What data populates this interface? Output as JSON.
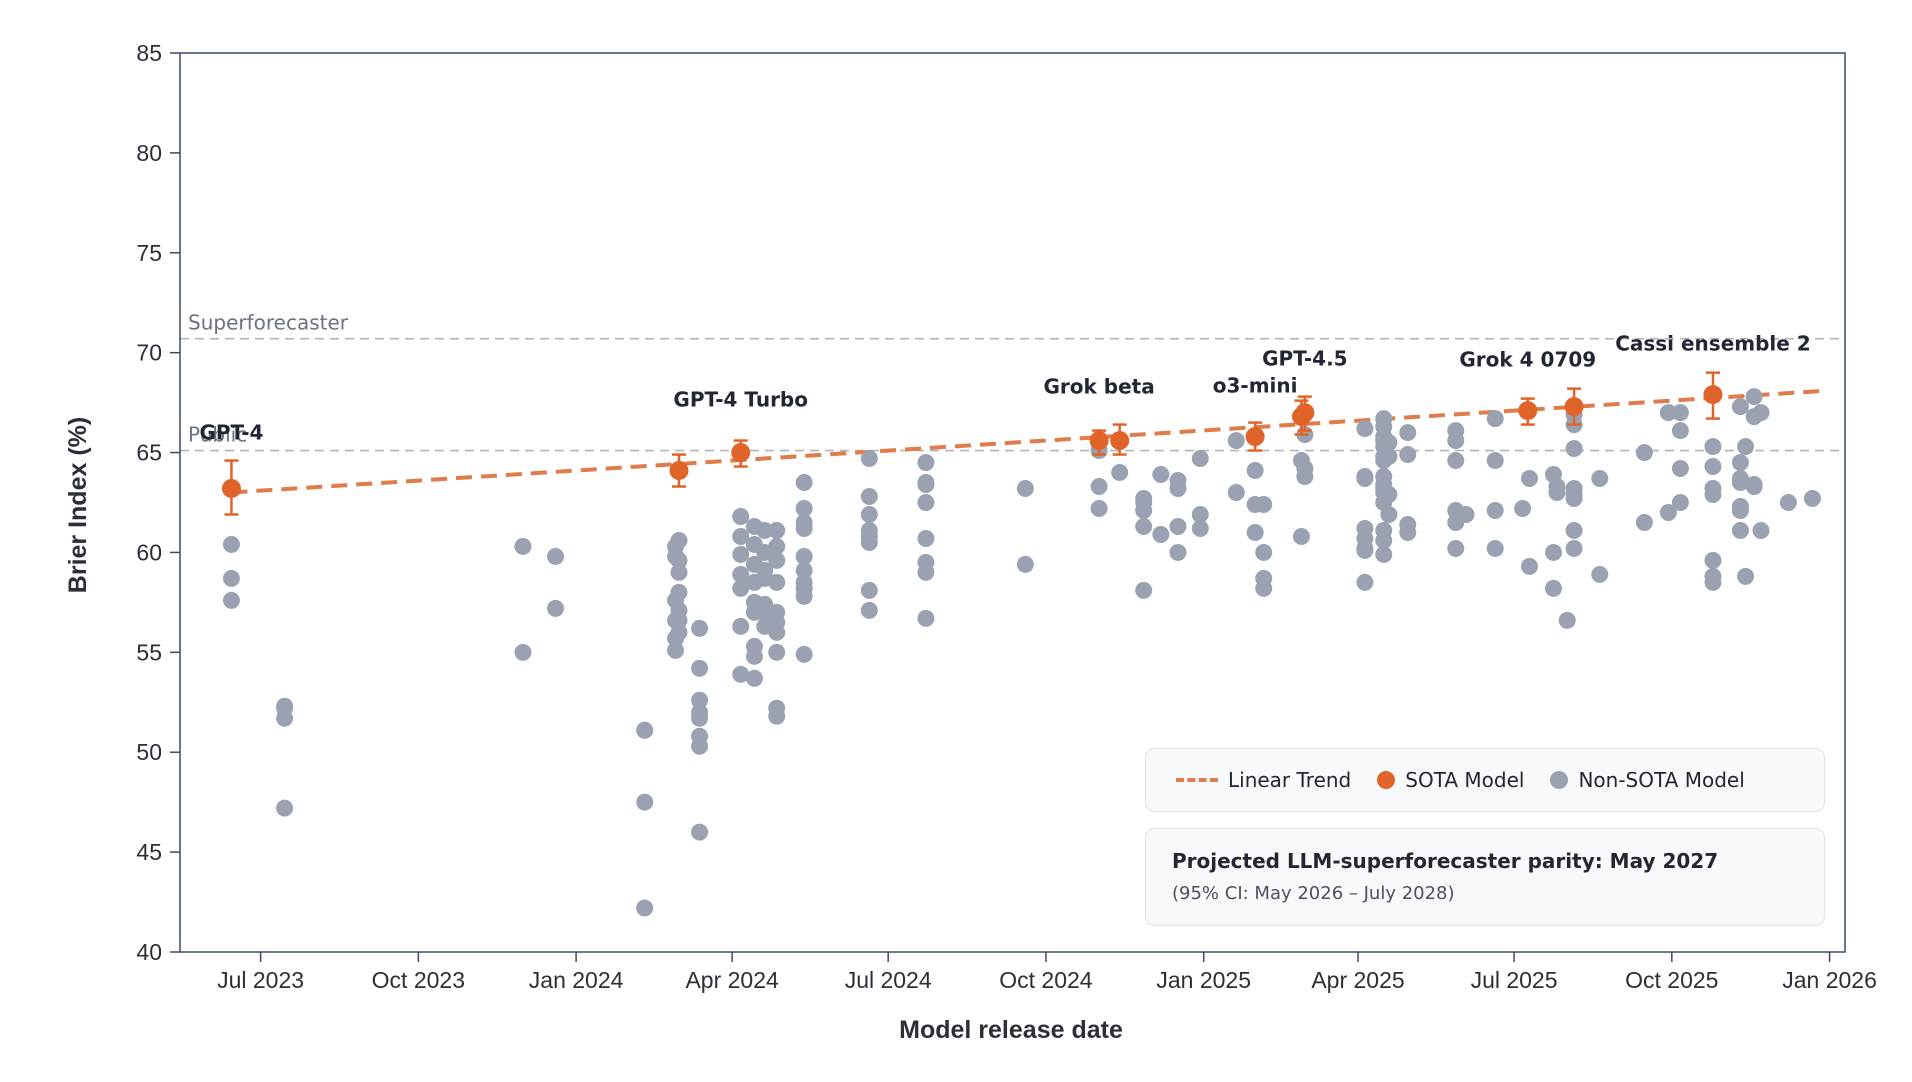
{
  "chart_data": {
    "type": "scatter",
    "title": "",
    "xlabel": "Model release date",
    "ylabel": "Brier Index (%)",
    "ylim": [
      40,
      85
    ],
    "yticks": [
      40,
      45,
      50,
      55,
      60,
      65,
      70,
      75,
      80,
      85
    ],
    "xlim": [
      "2023-05-15",
      "2026-01-10"
    ],
    "xticks": [
      {
        "date": "2023-07-01",
        "label": "Jul 2023"
      },
      {
        "date": "2023-10-01",
        "label": "Oct 2023"
      },
      {
        "date": "2024-01-01",
        "label": "Jan 2024"
      },
      {
        "date": "2024-04-01",
        "label": "Apr 2024"
      },
      {
        "date": "2024-07-01",
        "label": "Jul 2024"
      },
      {
        "date": "2024-10-01",
        "label": "Oct 2024"
      },
      {
        "date": "2025-01-01",
        "label": "Jan 2025"
      },
      {
        "date": "2025-04-01",
        "label": "Apr 2025"
      },
      {
        "date": "2025-07-01",
        "label": "Jul 2025"
      },
      {
        "date": "2025-10-01",
        "label": "Oct 2025"
      },
      {
        "date": "2026-01-01",
        "label": "Jan 2026"
      }
    ],
    "reference_lines": [
      {
        "label": "Superforecaster",
        "value": 70.7
      },
      {
        "label": "Public",
        "value": 65.1
      }
    ],
    "trend": {
      "name": "Linear Trend",
      "start": [
        "2023-06-14",
        63.0
      ],
      "end": [
        "2025-12-31",
        68.1
      ]
    },
    "sota_series": {
      "name": "SOTA Model",
      "points": [
        {
          "date": "2023-06-14",
          "value": 63.2,
          "low": 61.9,
          "high": 64.6,
          "label": "GPT-4"
        },
        {
          "date": "2024-03-01",
          "value": 64.1,
          "low": 63.3,
          "high": 64.9,
          "label": ""
        },
        {
          "date": "2024-04-06",
          "value": 65.0,
          "low": 64.3,
          "high": 65.6,
          "label": "GPT-4 Turbo"
        },
        {
          "date": "2024-11-01",
          "value": 65.6,
          "low": 64.9,
          "high": 66.1,
          "label": "Grok beta"
        },
        {
          "date": "2024-11-13",
          "value": 65.6,
          "low": 64.9,
          "high": 66.4,
          "label": ""
        },
        {
          "date": "2025-01-31",
          "value": 65.8,
          "low": 65.1,
          "high": 66.5,
          "label": "o3-mini"
        },
        {
          "date": "2025-02-27",
          "value": 66.8,
          "low": 65.9,
          "high": 67.6,
          "label": ""
        },
        {
          "date": "2025-03-01",
          "value": 67.0,
          "low": 66.1,
          "high": 67.8,
          "label": "GPT-4.5"
        },
        {
          "date": "2025-07-09",
          "value": 67.1,
          "low": 66.4,
          "high": 67.7,
          "label": "Grok 4 0709"
        },
        {
          "date": "2025-08-05",
          "value": 67.3,
          "low": 66.4,
          "high": 68.2,
          "label": ""
        },
        {
          "date": "2025-10-25",
          "value": 67.9,
          "low": 66.7,
          "high": 69.0,
          "label": "Cassi ensemble 2"
        }
      ]
    },
    "non_sota_series": {
      "name": "Non-SOTA Model",
      "points": [
        [
          "2023-06-14",
          60.4
        ],
        [
          "2023-06-14",
          58.7
        ],
        [
          "2023-06-14",
          57.6
        ],
        [
          "2023-07-15",
          52.3
        ],
        [
          "2023-07-15",
          52.2
        ],
        [
          "2023-07-15",
          51.7
        ],
        [
          "2023-07-15",
          47.2
        ],
        [
          "2023-12-01",
          60.3
        ],
        [
          "2023-12-01",
          55.0
        ],
        [
          "2023-12-20",
          59.8
        ],
        [
          "2023-12-20",
          57.2
        ],
        [
          "2024-02-10",
          51.1
        ],
        [
          "2024-02-10",
          51.1
        ],
        [
          "2024-02-10",
          47.5
        ],
        [
          "2024-02-10",
          42.2
        ],
        [
          "2024-02-28",
          60.3
        ],
        [
          "2024-02-28",
          59.8
        ],
        [
          "2024-02-28",
          57.6
        ],
        [
          "2024-02-28",
          56.6
        ],
        [
          "2024-02-28",
          55.7
        ],
        [
          "2024-02-28",
          55.1
        ],
        [
          "2024-03-01",
          60.6
        ],
        [
          "2024-03-01",
          59.6
        ],
        [
          "2024-03-01",
          59.0
        ],
        [
          "2024-03-01",
          58.0
        ],
        [
          "2024-03-01",
          57.1
        ],
        [
          "2024-03-01",
          56.6
        ],
        [
          "2024-03-01",
          56.0
        ],
        [
          "2024-03-13",
          56.2
        ],
        [
          "2024-03-13",
          54.2
        ],
        [
          "2024-03-13",
          52.6
        ],
        [
          "2024-03-13",
          52.0
        ],
        [
          "2024-03-13",
          51.7
        ],
        [
          "2024-03-13",
          50.8
        ],
        [
          "2024-03-13",
          50.3
        ],
        [
          "2024-03-13",
          46.0
        ],
        [
          "2024-04-06",
          61.8
        ],
        [
          "2024-04-06",
          60.8
        ],
        [
          "2024-04-06",
          59.9
        ],
        [
          "2024-04-06",
          58.9
        ],
        [
          "2024-04-06",
          58.2
        ],
        [
          "2024-04-06",
          56.3
        ],
        [
          "2024-04-06",
          53.9
        ],
        [
          "2024-04-14",
          61.3
        ],
        [
          "2024-04-14",
          60.4
        ],
        [
          "2024-04-14",
          59.4
        ],
        [
          "2024-04-14",
          58.5
        ],
        [
          "2024-04-14",
          57.5
        ],
        [
          "2024-04-14",
          57.0
        ],
        [
          "2024-04-14",
          55.3
        ],
        [
          "2024-04-14",
          54.8
        ],
        [
          "2024-04-14",
          53.7
        ],
        [
          "2024-04-20",
          61.1
        ],
        [
          "2024-04-20",
          60.0
        ],
        [
          "2024-04-20",
          59.1
        ],
        [
          "2024-04-20",
          58.7
        ],
        [
          "2024-04-20",
          57.4
        ],
        [
          "2024-04-20",
          57.0
        ],
        [
          "2024-04-20",
          56.3
        ],
        [
          "2024-04-27",
          61.1
        ],
        [
          "2024-04-27",
          60.3
        ],
        [
          "2024-04-27",
          59.6
        ],
        [
          "2024-04-27",
          58.5
        ],
        [
          "2024-04-27",
          57.0
        ],
        [
          "2024-04-27",
          56.5
        ],
        [
          "2024-04-27",
          56.0
        ],
        [
          "2024-04-27",
          55.0
        ],
        [
          "2024-04-27",
          52.2
        ],
        [
          "2024-04-27",
          51.8
        ],
        [
          "2024-05-13",
          63.5
        ],
        [
          "2024-05-13",
          62.2
        ],
        [
          "2024-05-13",
          61.5
        ],
        [
          "2024-05-13",
          61.2
        ],
        [
          "2024-05-13",
          59.8
        ],
        [
          "2024-05-13",
          59.1
        ],
        [
          "2024-05-13",
          58.5
        ],
        [
          "2024-05-13",
          58.2
        ],
        [
          "2024-05-13",
          57.8
        ],
        [
          "2024-05-13",
          54.9
        ],
        [
          "2024-06-20",
          64.7
        ],
        [
          "2024-06-20",
          62.8
        ],
        [
          "2024-06-20",
          61.9
        ],
        [
          "2024-06-20",
          61.1
        ],
        [
          "2024-06-20",
          60.8
        ],
        [
          "2024-06-20",
          60.5
        ],
        [
          "2024-06-20",
          58.1
        ],
        [
          "2024-06-20",
          57.1
        ],
        [
          "2024-07-23",
          64.5
        ],
        [
          "2024-07-23",
          63.5
        ],
        [
          "2024-07-23",
          63.4
        ],
        [
          "2024-07-23",
          62.5
        ],
        [
          "2024-07-23",
          60.7
        ],
        [
          "2024-07-23",
          59.5
        ],
        [
          "2024-07-23",
          59.0
        ],
        [
          "2024-07-23",
          56.7
        ],
        [
          "2024-09-19",
          63.2
        ],
        [
          "2024-09-19",
          59.4
        ],
        [
          "2024-11-01",
          65.1
        ],
        [
          "2024-11-01",
          63.3
        ],
        [
          "2024-11-01",
          62.2
        ],
        [
          "2024-11-13",
          64.0
        ],
        [
          "2024-11-27",
          62.7
        ],
        [
          "2024-11-27",
          62.5
        ],
        [
          "2024-11-27",
          62.1
        ],
        [
          "2024-11-27",
          61.3
        ],
        [
          "2024-11-27",
          58.1
        ],
        [
          "2024-12-07",
          63.9
        ],
        [
          "2024-12-07",
          60.9
        ],
        [
          "2024-12-17",
          63.6
        ],
        [
          "2024-12-17",
          63.2
        ],
        [
          "2024-12-17",
          61.3
        ],
        [
          "2024-12-17",
          60.0
        ],
        [
          "2024-12-30",
          64.7
        ],
        [
          "2024-12-30",
          61.9
        ],
        [
          "2024-12-30",
          61.2
        ],
        [
          "2025-01-20",
          65.6
        ],
        [
          "2025-01-20",
          63.0
        ],
        [
          "2025-01-31",
          64.1
        ],
        [
          "2025-01-31",
          62.4
        ],
        [
          "2025-01-31",
          61.0
        ],
        [
          "2025-02-05",
          62.4
        ],
        [
          "2025-02-05",
          60.0
        ],
        [
          "2025-02-05",
          58.7
        ],
        [
          "2025-02-05",
          58.2
        ],
        [
          "2025-02-27",
          64.6
        ],
        [
          "2025-02-27",
          60.8
        ],
        [
          "2025-03-01",
          65.9
        ],
        [
          "2025-03-01",
          64.2
        ],
        [
          "2025-03-01",
          63.8
        ],
        [
          "2025-04-05",
          66.2
        ],
        [
          "2025-04-05",
          63.8
        ],
        [
          "2025-04-05",
          63.7
        ],
        [
          "2025-04-05",
          61.2
        ],
        [
          "2025-04-05",
          60.7
        ],
        [
          "2025-04-05",
          60.2
        ],
        [
          "2025-04-05",
          60.1
        ],
        [
          "2025-04-05",
          58.5
        ],
        [
          "2025-04-16",
          66.7
        ],
        [
          "2025-04-16",
          66.3
        ],
        [
          "2025-04-16",
          65.8
        ],
        [
          "2025-04-16",
          65.6
        ],
        [
          "2025-04-16",
          65.3
        ],
        [
          "2025-04-16",
          64.8
        ],
        [
          "2025-04-16",
          64.6
        ],
        [
          "2025-04-16",
          63.8
        ],
        [
          "2025-04-16",
          63.4
        ],
        [
          "2025-04-16",
          63.2
        ],
        [
          "2025-04-16",
          63.0
        ],
        [
          "2025-04-16",
          62.5
        ],
        [
          "2025-04-16",
          61.1
        ],
        [
          "2025-04-16",
          60.6
        ],
        [
          "2025-04-16",
          59.9
        ],
        [
          "2025-04-19",
          65.5
        ],
        [
          "2025-04-19",
          64.8
        ],
        [
          "2025-04-19",
          62.9
        ],
        [
          "2025-04-19",
          61.9
        ],
        [
          "2025-04-30",
          66.0
        ],
        [
          "2025-04-30",
          64.9
        ],
        [
          "2025-04-30",
          61.4
        ],
        [
          "2025-04-30",
          61.0
        ],
        [
          "2025-05-28",
          66.1
        ],
        [
          "2025-05-28",
          65.6
        ],
        [
          "2025-05-28",
          64.6
        ],
        [
          "2025-05-28",
          62.1
        ],
        [
          "2025-05-28",
          61.5
        ],
        [
          "2025-05-28",
          60.2
        ],
        [
          "2025-06-03",
          61.9
        ],
        [
          "2025-06-20",
          66.7
        ],
        [
          "2025-06-20",
          64.6
        ],
        [
          "2025-06-20",
          62.1
        ],
        [
          "2025-06-20",
          60.2
        ],
        [
          "2025-07-06",
          62.2
        ],
        [
          "2025-07-10",
          63.7
        ],
        [
          "2025-07-10",
          59.3
        ],
        [
          "2025-07-24",
          63.9
        ],
        [
          "2025-07-24",
          60.0
        ],
        [
          "2025-07-24",
          58.2
        ],
        [
          "2025-07-26",
          63.3
        ],
        [
          "2025-07-26",
          63.0
        ],
        [
          "2025-08-01",
          56.6
        ],
        [
          "2025-08-05",
          66.9
        ],
        [
          "2025-08-05",
          66.4
        ],
        [
          "2025-08-05",
          65.2
        ],
        [
          "2025-08-05",
          63.2
        ],
        [
          "2025-08-05",
          62.9
        ],
        [
          "2025-08-05",
          62.7
        ],
        [
          "2025-08-05",
          61.1
        ],
        [
          "2025-08-05",
          60.2
        ],
        [
          "2025-08-20",
          63.7
        ],
        [
          "2025-08-20",
          58.9
        ],
        [
          "2025-09-15",
          65.0
        ],
        [
          "2025-09-15",
          61.5
        ],
        [
          "2025-09-29",
          67.0
        ],
        [
          "2025-09-29",
          62.0
        ],
        [
          "2025-10-06",
          67.0
        ],
        [
          "2025-10-06",
          66.1
        ],
        [
          "2025-10-06",
          64.2
        ],
        [
          "2025-10-06",
          62.5
        ],
        [
          "2025-10-25",
          65.3
        ],
        [
          "2025-10-25",
          64.3
        ],
        [
          "2025-10-25",
          63.2
        ],
        [
          "2025-10-25",
          62.9
        ],
        [
          "2025-10-25",
          59.6
        ],
        [
          "2025-10-25",
          58.8
        ],
        [
          "2025-10-25",
          58.5
        ],
        [
          "2025-11-10",
          67.3
        ],
        [
          "2025-11-10",
          64.5
        ],
        [
          "2025-11-10",
          63.7
        ],
        [
          "2025-11-10",
          63.5
        ],
        [
          "2025-11-10",
          62.3
        ],
        [
          "2025-11-10",
          62.1
        ],
        [
          "2025-11-10",
          61.1
        ],
        [
          "2025-11-13",
          65.3
        ],
        [
          "2025-11-13",
          58.8
        ],
        [
          "2025-11-18",
          67.8
        ],
        [
          "2025-11-18",
          66.8
        ],
        [
          "2025-11-18",
          63.4
        ],
        [
          "2025-11-18",
          63.3
        ],
        [
          "2025-11-22",
          67.0
        ],
        [
          "2025-11-22",
          61.1
        ],
        [
          "2025-12-08",
          62.5
        ],
        [
          "2025-12-22",
          62.7
        ]
      ]
    },
    "colors": {
      "sota": "#e0632a",
      "trend": "#e07b4a",
      "non_sota": "#9aa2b1",
      "axis": "#3b4a66",
      "ref_line": "#b5b5b5"
    }
  },
  "legend": {
    "trend_label": "Linear Trend",
    "sota_label": "SOTA Model",
    "non_sota_label": "Non-SOTA Model"
  },
  "projection": {
    "title": "Projected LLM-superforecaster parity: May 2027",
    "subtitle": "(95% CI: May 2026 – July 2028)"
  }
}
